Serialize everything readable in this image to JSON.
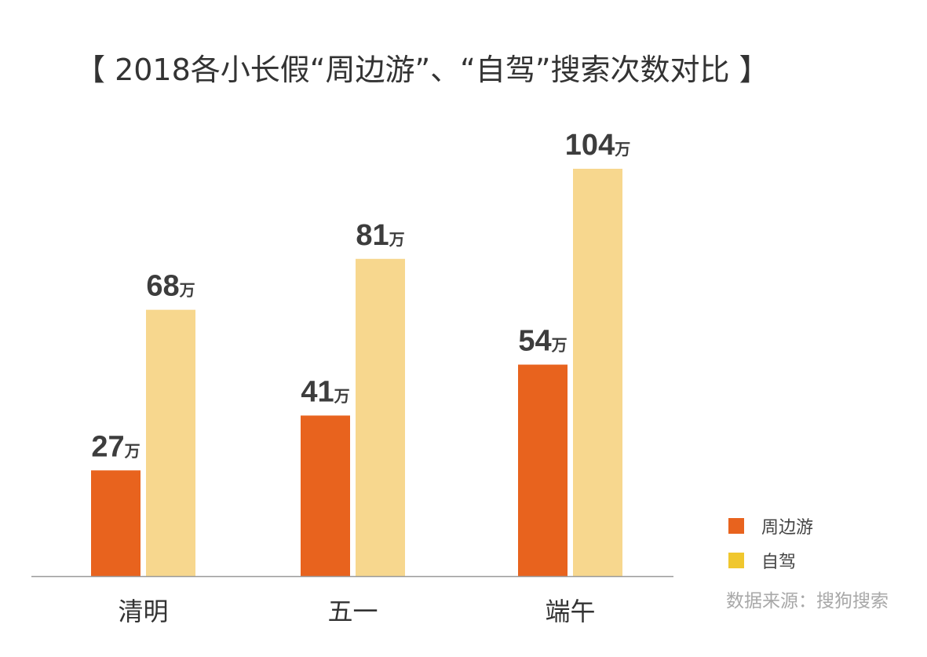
{
  "chart_data": {
    "type": "bar",
    "title": "【 2018各小长假“周边游”、“自驾”搜索次数对比 】",
    "categories": [
      "清明",
      "五一",
      "端午"
    ],
    "series": [
      {
        "name": "周边游",
        "values": [
          27,
          41,
          54
        ],
        "color": "#e8631e"
      },
      {
        "name": "自驾",
        "values": [
          68,
          81,
          104
        ],
        "color": "#f7d78e"
      }
    ],
    "value_unit": "万",
    "ylim": [
      0,
      104
    ],
    "grid": false,
    "legend_position": "bottom-right",
    "legend": [
      {
        "name": "周边游",
        "color": "#e8631e"
      },
      {
        "name": "自驾",
        "color": "#f0c72e"
      }
    ],
    "axis_color": "#9a9a9a"
  },
  "source_note": "数据来源：搜狗搜索"
}
